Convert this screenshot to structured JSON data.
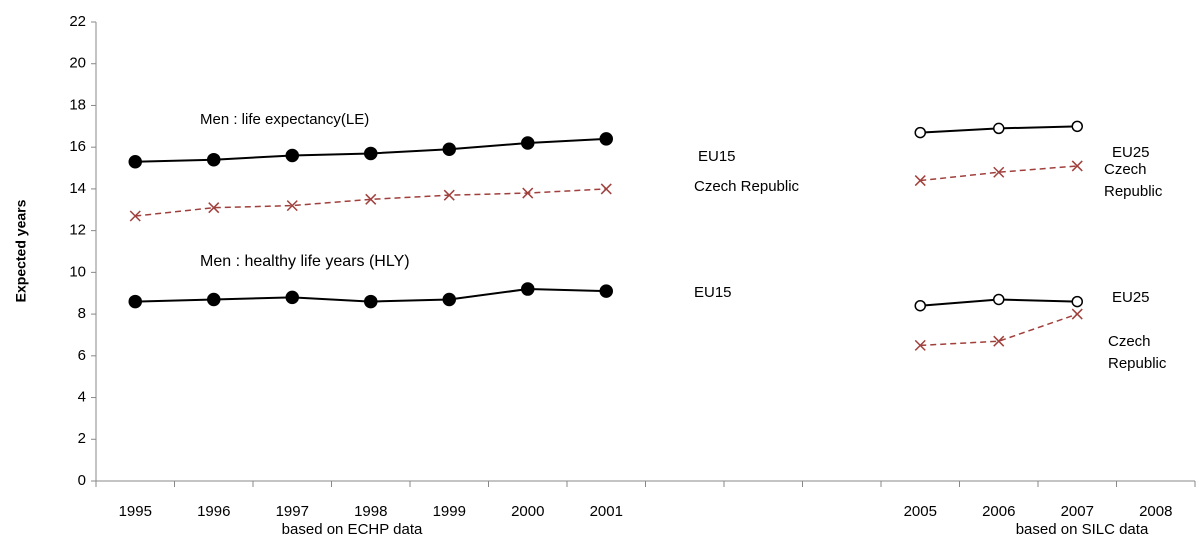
{
  "chart_data": {
    "type": "line",
    "y_label": "Expected years",
    "annotations": [
      "Men : life expectancy(LE)",
      "Men : healthy life years (HLY)",
      "based on ECHP data",
      "based on SILC data"
    ],
    "categories": [
      "1995",
      "1996",
      "1997",
      "1998",
      "1999",
      "2000",
      "2001",
      null,
      null,
      null,
      "2005",
      "2006",
      "2007",
      "2008"
    ],
    "ylim": [
      0,
      22
    ],
    "yticks": [
      0,
      2,
      4,
      6,
      8,
      10,
      12,
      14,
      16,
      18,
      20,
      22
    ],
    "series": [
      {
        "name": "EU15",
        "color": "#000000",
        "marker": "filled-circle",
        "dashed": false,
        "values": [
          15.3,
          15.4,
          15.6,
          15.7,
          15.9,
          16.2,
          16.4,
          null,
          null,
          null,
          null,
          null,
          null,
          null
        ]
      },
      {
        "name": "Czech Republic",
        "color": "#a0403c",
        "marker": "x",
        "dashed": true,
        "values": [
          12.7,
          13.1,
          13.2,
          13.5,
          13.7,
          13.8,
          14.0,
          null,
          null,
          null,
          null,
          null,
          null,
          null
        ]
      },
      {
        "name": "EU15",
        "color": "#000000",
        "marker": "filled-circle",
        "dashed": false,
        "values": [
          8.6,
          8.7,
          8.8,
          8.6,
          8.7,
          9.2,
          9.1,
          null,
          null,
          null,
          null,
          null,
          null,
          null
        ]
      },
      {
        "name": "EU25",
        "color": "#000000",
        "marker": "open-circle",
        "dashed": false,
        "values": [
          null,
          null,
          null,
          null,
          null,
          null,
          null,
          null,
          null,
          null,
          16.7,
          16.9,
          17.0,
          null
        ]
      },
      {
        "name": "Czech Republic",
        "color": "#a0403c",
        "marker": "x",
        "dashed": true,
        "values": [
          null,
          null,
          null,
          null,
          null,
          null,
          null,
          null,
          null,
          null,
          14.4,
          14.8,
          15.1,
          null
        ]
      },
      {
        "name": "EU25",
        "color": "#000000",
        "marker": "open-circle",
        "dashed": false,
        "values": [
          null,
          null,
          null,
          null,
          null,
          null,
          null,
          null,
          null,
          null,
          8.4,
          8.7,
          8.6,
          null
        ]
      },
      {
        "name": "Czech Republic",
        "color": "#a0403c",
        "marker": "x",
        "dashed": true,
        "values": [
          null,
          null,
          null,
          null,
          null,
          null,
          null,
          null,
          null,
          null,
          6.5,
          6.7,
          8.0,
          null
        ]
      }
    ]
  }
}
